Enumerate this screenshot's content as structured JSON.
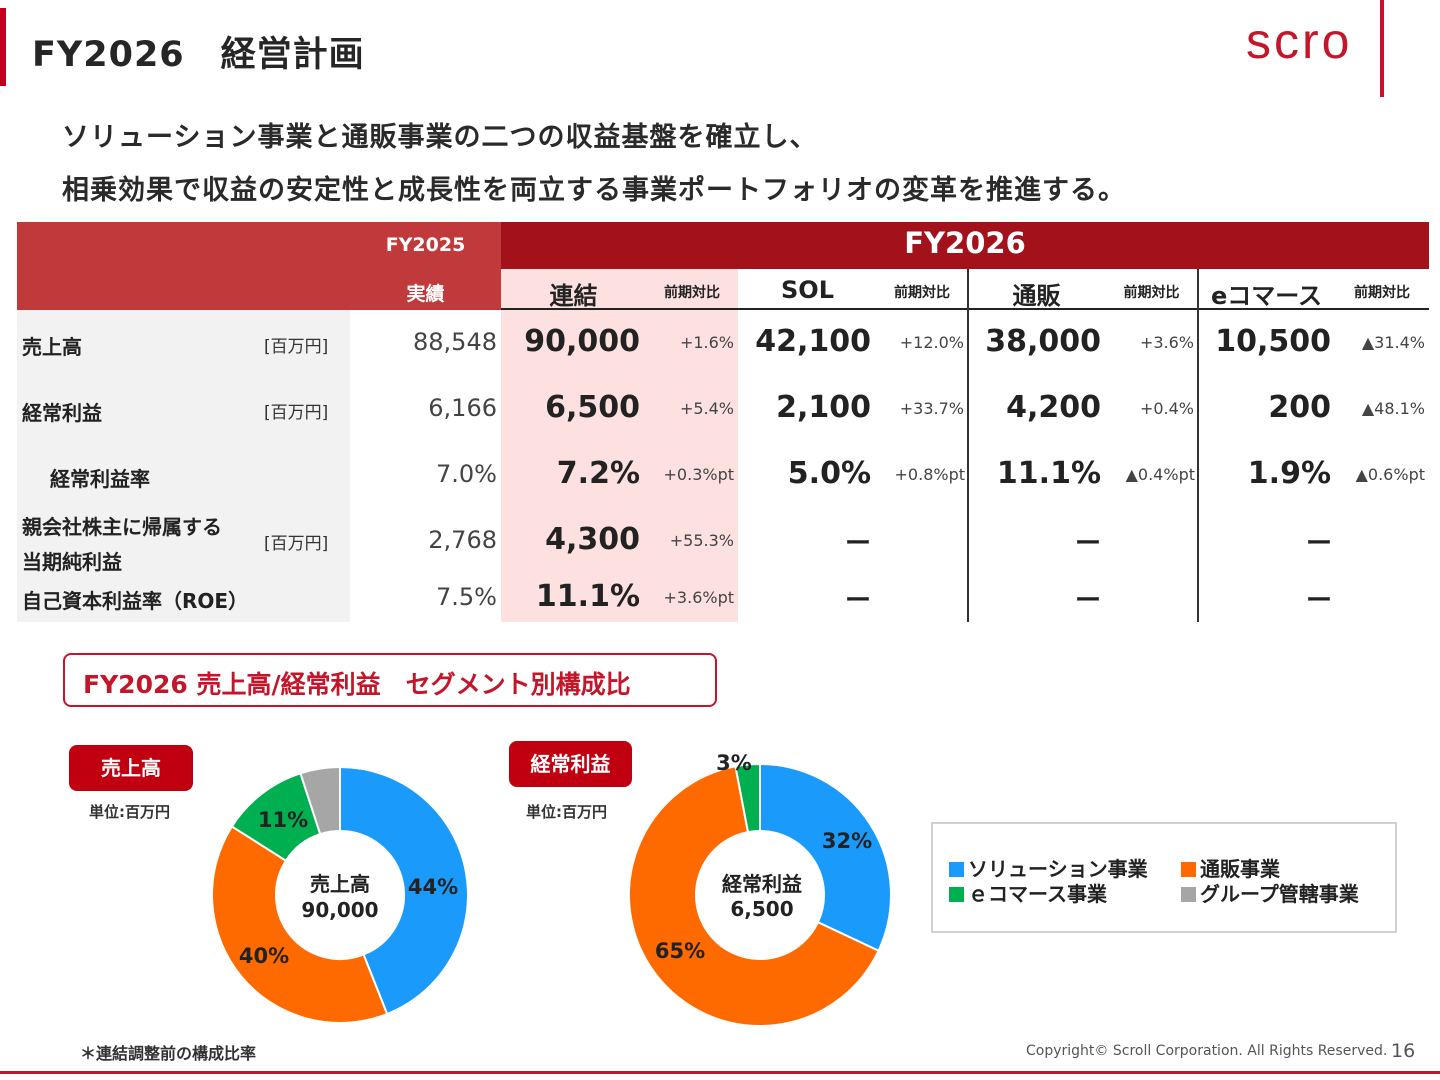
{
  "header": {
    "title": "FY2026　経営計画",
    "logo_text": "scro"
  },
  "headline": {
    "line1": "ソリューション事業と通販事業の二つの収益基盤を確立し、",
    "line2": "相乗効果で収益の安定性と成長性を両立する事業ポートフォリオの変革を推進する。"
  },
  "table": {
    "fy2025_label": "FY2025",
    "fy2025_sub": "実績",
    "fy2026_label": "FY2026",
    "segments": [
      {
        "name": "連結",
        "change_header": "前期対比"
      },
      {
        "name": "SOL",
        "change_header": "前期対比"
      },
      {
        "name": "通販",
        "change_header": "前期対比"
      },
      {
        "name": "eコマース",
        "change_header": "前期対比"
      }
    ],
    "rows": [
      {
        "label": "売上高",
        "unit": "[百万円]",
        "fy2025": "88,548",
        "cells": [
          [
            "90,000",
            "+1.6%"
          ],
          [
            "42,100",
            "+12.0%"
          ],
          [
            "38,000",
            "+3.6%"
          ],
          [
            "10,500",
            "▲31.4%"
          ]
        ]
      },
      {
        "label": "経常利益",
        "unit": "[百万円]",
        "fy2025": "6,166",
        "cells": [
          [
            "6,500",
            "+5.4%"
          ],
          [
            "2,100",
            "+33.7%"
          ],
          [
            "4,200",
            "+0.4%"
          ],
          [
            "200",
            "▲48.1%"
          ]
        ]
      },
      {
        "label": "経常利益率",
        "unit": "",
        "fy2025": "7.0%",
        "cells": [
          [
            "7.2%",
            "+0.3%pt"
          ],
          [
            "5.0%",
            "+0.8%pt"
          ],
          [
            "11.1%",
            "▲0.4%pt"
          ],
          [
            "1.9%",
            "▲0.6%pt"
          ]
        ]
      },
      {
        "label_line1": "親会社株主に帰属する",
        "label_line2": "当期純利益",
        "unit": "[百万円]",
        "fy2025": "2,768",
        "cells": [
          [
            "4,300",
            "+55.3%"
          ],
          [
            "ー",
            ""
          ],
          [
            "ー",
            ""
          ],
          [
            "ー",
            ""
          ]
        ]
      },
      {
        "label": "自己資本利益率（ROE）",
        "unit": "",
        "fy2025": "7.5%",
        "cells": [
          [
            "11.1%",
            "+3.6%pt"
          ],
          [
            "ー",
            ""
          ],
          [
            "ー",
            ""
          ],
          [
            "ー",
            ""
          ]
        ]
      }
    ]
  },
  "section_title": "FY2026 売上高/経常利益　セグメント別構成比",
  "sales_chart": {
    "badge": "売上高",
    "unit_note": "単位:百万円",
    "center_line1": "売上高",
    "center_line2": "90,000"
  },
  "profit_chart": {
    "badge": "経常利益",
    "unit_note": "単位:百万円",
    "center_line1": "経常利益",
    "center_line2": "6,500"
  },
  "chart_data": [
    {
      "type": "pie",
      "categories": [
        "ソリューション事業",
        "通販事業",
        "ｅコマース事業",
        "グループ管轄事業"
      ],
      "values": [
        44,
        40,
        11,
        5
      ],
      "labels": [
        "44%",
        "40%",
        "11%",
        ""
      ],
      "colors": [
        "#1a9bfc",
        "#ff6a00",
        "#00b050",
        "#a6a6a6"
      ]
    },
    {
      "type": "pie",
      "categories": [
        "ソリューション事業",
        "通販事業",
        "ｅコマース事業",
        "グループ管轄事業"
      ],
      "values": [
        32,
        65,
        3,
        0
      ],
      "labels": [
        "32%",
        "65%",
        "3%",
        ""
      ],
      "colors": [
        "#1a9bfc",
        "#ff6a00",
        "#00b050",
        "#a6a6a6"
      ]
    }
  ],
  "legend": {
    "items": [
      "ソリューション事業",
      "通販事業",
      "ｅコマース事業",
      "グループ管轄事業"
    ],
    "colors": [
      "#1a9bfc",
      "#ff6a00",
      "#00b050",
      "#a6a6a6"
    ]
  },
  "footnote": "＊連結調整前の構成比率",
  "copyright": "Copyright© Scroll Corporation. All Rights Reserved.",
  "page_number": "16"
}
